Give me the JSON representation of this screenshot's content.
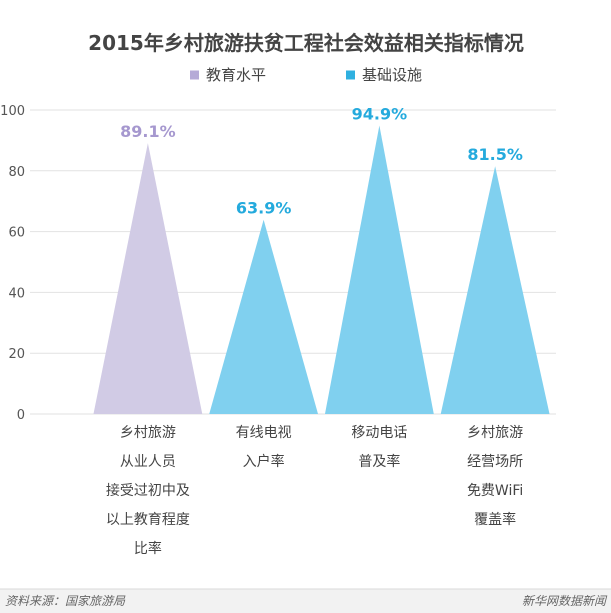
{
  "chart_data": {
    "type": "bar",
    "title": "2015年乡村旅游扶贫工程社会效益相关指标情况",
    "xlabel": "",
    "ylabel": "",
    "categories": [
      [
        "乡村旅游",
        "从业人员",
        "接受过初中及",
        "以上教育程度",
        "比率"
      ],
      [
        "有线电视",
        "入户率"
      ],
      [
        "移动电话",
        "普及率"
      ],
      [
        "乡村旅游",
        "经营场所",
        "免费WiFi",
        "覆盖率"
      ]
    ],
    "series": [
      {
        "name": "教育水平",
        "values": [
          89.1,
          null,
          null,
          null
        ],
        "color": "#d1cbe5",
        "label_color": "#a698cf",
        "legend_color": "#b5aad7"
      },
      {
        "name": "基础设施",
        "values": [
          null,
          63.9,
          94.9,
          81.5
        ],
        "color": "#80d0ef",
        "label_color": "#24aadd",
        "legend_color": "#2fb0e0"
      }
    ],
    "data_labels": [
      "89.1%",
      "63.9%",
      "94.9%",
      "81.5%"
    ],
    "ylim": [
      0,
      100
    ],
    "yticks": [
      0,
      20,
      40,
      60,
      80,
      100
    ],
    "grid": true,
    "legend": "top-center"
  },
  "footer": {
    "source": "资料来源：国家旅游局",
    "credit": "新华网数据新闻"
  }
}
